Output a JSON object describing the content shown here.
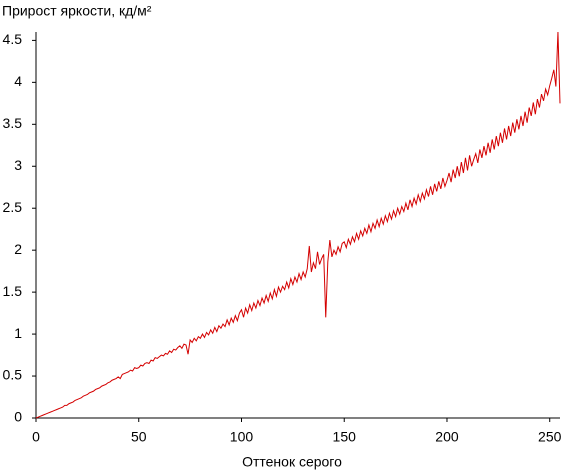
{
  "chart_data": {
    "type": "line",
    "title": "Прирост яркости, кд/м²",
    "x_label": "Оттенок серого",
    "xlim": [
      0,
      255
    ],
    "xticks": [
      0,
      50,
      100,
      150,
      200,
      250
    ],
    "ylim": [
      0,
      4.6
    ],
    "yticks": [
      0,
      0.5,
      1,
      1.5,
      2,
      2.5,
      3,
      3.5,
      4,
      4.5
    ],
    "grid": false,
    "color": "#d40000",
    "x": [
      0,
      1,
      2,
      3,
      4,
      5,
      6,
      7,
      8,
      9,
      10,
      11,
      12,
      13,
      14,
      15,
      16,
      17,
      18,
      19,
      20,
      21,
      22,
      23,
      24,
      25,
      26,
      27,
      28,
      29,
      30,
      31,
      32,
      33,
      34,
      35,
      36,
      37,
      38,
      39,
      40,
      41,
      42,
      43,
      44,
      45,
      46,
      47,
      48,
      49,
      50,
      51,
      52,
      53,
      54,
      55,
      56,
      57,
      58,
      59,
      60,
      61,
      62,
      63,
      64,
      65,
      66,
      67,
      68,
      69,
      70,
      71,
      72,
      73,
      74,
      75,
      76,
      77,
      78,
      79,
      80,
      81,
      82,
      83,
      84,
      85,
      86,
      87,
      88,
      89,
      90,
      91,
      92,
      93,
      94,
      95,
      96,
      97,
      98,
      99,
      100,
      101,
      102,
      103,
      104,
      105,
      106,
      107,
      108,
      109,
      110,
      111,
      112,
      113,
      114,
      115,
      116,
      117,
      118,
      119,
      120,
      121,
      122,
      123,
      124,
      125,
      126,
      127,
      128,
      129,
      130,
      131,
      132,
      133,
      134,
      135,
      136,
      137,
      138,
      139,
      140,
      141,
      142,
      143,
      144,
      145,
      146,
      147,
      148,
      149,
      150,
      151,
      152,
      153,
      154,
      155,
      156,
      157,
      158,
      159,
      160,
      161,
      162,
      163,
      164,
      165,
      166,
      167,
      168,
      169,
      170,
      171,
      172,
      173,
      174,
      175,
      176,
      177,
      178,
      179,
      180,
      181,
      182,
      183,
      184,
      185,
      186,
      187,
      188,
      189,
      190,
      191,
      192,
      193,
      194,
      195,
      196,
      197,
      198,
      199,
      200,
      201,
      202,
      203,
      204,
      205,
      206,
      207,
      208,
      209,
      210,
      211,
      212,
      213,
      214,
      215,
      216,
      217,
      218,
      219,
      220,
      221,
      222,
      223,
      224,
      225,
      226,
      227,
      228,
      229,
      230,
      231,
      232,
      233,
      234,
      235,
      236,
      237,
      238,
      239,
      240,
      241,
      242,
      243,
      244,
      245,
      246,
      247,
      248,
      249,
      250,
      251,
      252,
      253,
      254,
      255
    ],
    "values": [
      0,
      0.01,
      0.02,
      0.03,
      0.04,
      0.05,
      0.06,
      0.07,
      0.08,
      0.09,
      0.1,
      0.11,
      0.12,
      0.13,
      0.15,
      0.15,
      0.17,
      0.18,
      0.19,
      0.21,
      0.22,
      0.23,
      0.24,
      0.26,
      0.27,
      0.28,
      0.3,
      0.31,
      0.32,
      0.34,
      0.35,
      0.36,
      0.38,
      0.39,
      0.4,
      0.42,
      0.43,
      0.45,
      0.46,
      0.47,
      0.49,
      0.47,
      0.52,
      0.53,
      0.54,
      0.55,
      0.57,
      0.56,
      0.6,
      0.59,
      0.6,
      0.63,
      0.62,
      0.65,
      0.66,
      0.65,
      0.69,
      0.68,
      0.72,
      0.71,
      0.73,
      0.75,
      0.74,
      0.77,
      0.76,
      0.8,
      0.78,
      0.82,
      0.81,
      0.84,
      0.86,
      0.83,
      0.88,
      0.87,
      0.76,
      0.93,
      0.9,
      0.95,
      0.92,
      0.97,
      0.95,
      1.0,
      0.96,
      1.02,
      0.99,
      1.05,
      1.01,
      1.08,
      1.03,
      1.1,
      1.07,
      1.12,
      1.09,
      1.17,
      1.11,
      1.19,
      1.14,
      1.22,
      1.16,
      1.25,
      1.29,
      1.2,
      1.31,
      1.25,
      1.35,
      1.28,
      1.37,
      1.31,
      1.4,
      1.34,
      1.43,
      1.37,
      1.46,
      1.39,
      1.49,
      1.42,
      1.53,
      1.45,
      1.56,
      1.5,
      1.57,
      1.53,
      1.62,
      1.55,
      1.66,
      1.59,
      1.68,
      1.62,
      1.72,
      1.65,
      1.74,
      1.68,
      1.78,
      2.05,
      1.74,
      1.85,
      1.78,
      1.98,
      1.83,
      1.9,
      1.95,
      1.2,
      1.86,
      2.12,
      1.92,
      2.0,
      1.95,
      2.04,
      1.98,
      2.08,
      2.1,
      2.03,
      2.13,
      2.07,
      2.16,
      2.1,
      2.2,
      2.13,
      2.23,
      2.17,
      2.26,
      2.2,
      2.3,
      2.22,
      2.32,
      2.26,
      2.36,
      2.28,
      2.38,
      2.31,
      2.41,
      2.34,
      2.44,
      2.37,
      2.47,
      2.4,
      2.5,
      2.43,
      2.52,
      2.46,
      2.56,
      2.48,
      2.6,
      2.52,
      2.62,
      2.55,
      2.66,
      2.58,
      2.68,
      2.61,
      2.72,
      2.64,
      2.76,
      2.66,
      2.79,
      2.7,
      2.82,
      2.73,
      2.86,
      2.76,
      2.83,
      2.92,
      2.81,
      2.96,
      2.86,
      3.0,
      2.88,
      3.05,
      2.92,
      3.1,
      2.95,
      3.13,
      3.0,
      3.08,
      3.15,
      3.04,
      3.2,
      3.1,
      3.24,
      3.13,
      3.28,
      3.16,
      3.32,
      3.2,
      3.36,
      3.24,
      3.4,
      3.28,
      3.45,
      3.32,
      3.48,
      3.36,
      3.52,
      3.4,
      3.56,
      3.44,
      3.6,
      3.48,
      3.65,
      3.52,
      3.7,
      3.6,
      3.76,
      3.62,
      3.8,
      3.7,
      3.86,
      3.78,
      3.92,
      3.85,
      3.96,
      4.05,
      4.15,
      3.95,
      4.6,
      3.75
    ]
  }
}
